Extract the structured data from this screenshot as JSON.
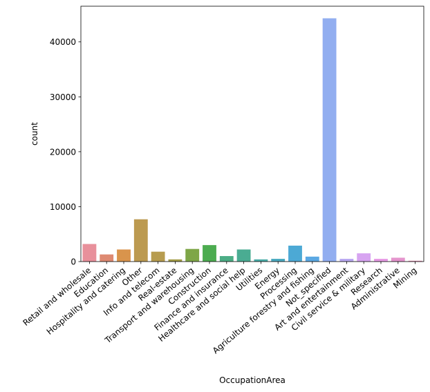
{
  "chart_data": {
    "type": "bar",
    "title": "",
    "xlabel": "OccupationArea",
    "ylabel": "count",
    "ylim": [
      0,
      46500
    ],
    "yticks": [
      0,
      10000,
      20000,
      30000,
      40000
    ],
    "ytick_labels": [
      "0",
      "10000",
      "20000",
      "30000",
      "40000"
    ],
    "grid": false,
    "categories": [
      "Retail and wholesale",
      "Education",
      "Hospitality and catering",
      "Other",
      "Info and telecom",
      "Real-estate",
      "Transport and warehousing",
      "Construction",
      "Finance and insurance",
      "Healthcare and social help",
      "Utilities",
      "Energy",
      "Processing",
      "Agriculture forestry and fishing",
      "Not_specified",
      "Art and entertainment",
      "Civil service & military",
      "Research",
      "Administrative",
      "Mining"
    ],
    "values": [
      3200,
      1300,
      2200,
      7700,
      1800,
      400,
      2300,
      3000,
      1000,
      2200,
      400,
      500,
      2900,
      900,
      44300,
      500,
      1500,
      500,
      700,
      150
    ],
    "colors": [
      "#e8909b",
      "#de8a72",
      "#d9944c",
      "#bc9a50",
      "#b79c4f",
      "#a39c48",
      "#7ea647",
      "#4cac50",
      "#4cad85",
      "#4aac92",
      "#4aaba6",
      "#4caac0",
      "#4ca9d5",
      "#5ba8e3",
      "#92aef0",
      "#b9a9f1",
      "#d7a4f1",
      "#e79be5",
      "#e494cd",
      "#e88fb2"
    ]
  }
}
